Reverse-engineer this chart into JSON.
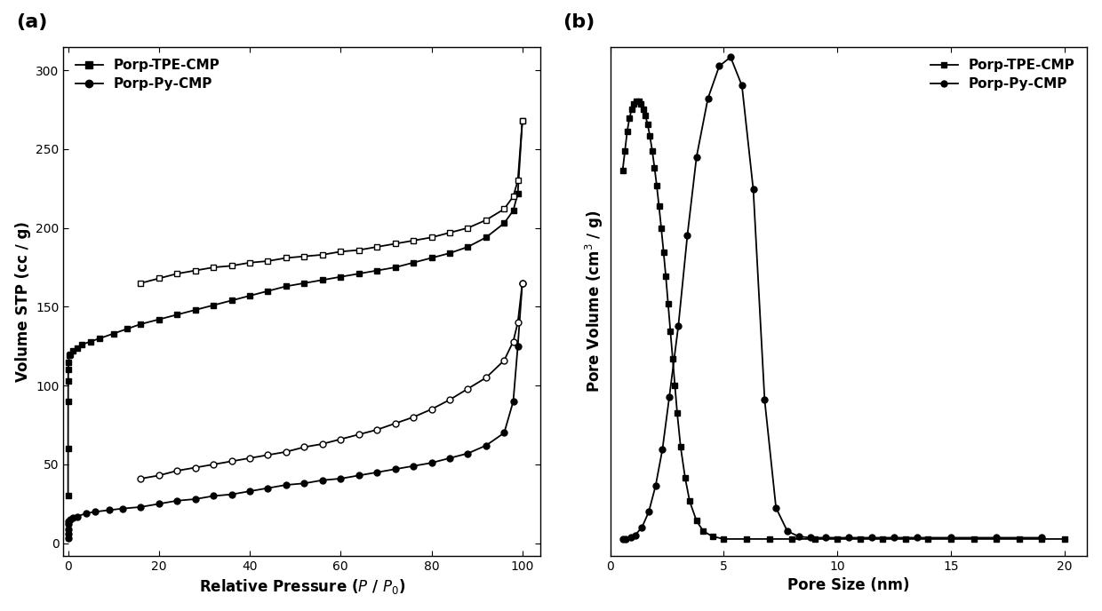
{
  "panel_a": {
    "title": "(a)",
    "xlabel": "Relative Pressure ($\\mathit{P}$ / $\\mathit{P}_0$)",
    "ylabel": "Volume STP (cc / g)",
    "xlim": [
      -1,
      104
    ],
    "ylim": [
      -8,
      315
    ],
    "xticks": [
      0,
      20,
      40,
      60,
      80,
      100
    ],
    "yticks": [
      0,
      50,
      100,
      150,
      200,
      250,
      300
    ],
    "tpe_ads_x": [
      0.005,
      0.01,
      0.02,
      0.03,
      0.05,
      0.1,
      0.3,
      0.5,
      1.0,
      2.0,
      3.0,
      5.0,
      7.0,
      10.0,
      13.0,
      16.0,
      20.0,
      24.0,
      28.0,
      32.0,
      36.0,
      40.0,
      44.0,
      48.0,
      52.0,
      56.0,
      60.0,
      64.0,
      68.0,
      72.0,
      76.0,
      80.0,
      84.0,
      88.0,
      92.0,
      96.0,
      98.0,
      99.0,
      100.0
    ],
    "tpe_ads_y": [
      30,
      60,
      90,
      103,
      110,
      115,
      119,
      120,
      122,
      124,
      126,
      128,
      130,
      133,
      136,
      139,
      142,
      145,
      148,
      151,
      154,
      157,
      160,
      163,
      165,
      167,
      169,
      171,
      173,
      175,
      178,
      181,
      184,
      188,
      194,
      203,
      211,
      222,
      268
    ],
    "tpe_des_x": [
      100.0,
      99.0,
      98.0,
      96.0,
      92.0,
      88.0,
      84.0,
      80.0,
      76.0,
      72.0,
      68.0,
      64.0,
      60.0,
      56.0,
      52.0,
      48.0,
      44.0,
      40.0,
      36.0,
      32.0,
      28.0,
      24.0,
      20.0,
      16.0
    ],
    "tpe_des_y": [
      268,
      230,
      220,
      212,
      205,
      200,
      197,
      194,
      192,
      190,
      188,
      186,
      185,
      183,
      182,
      181,
      179,
      178,
      176,
      175,
      173,
      171,
      168,
      165
    ],
    "py_ads_x": [
      0.005,
      0.01,
      0.02,
      0.05,
      0.1,
      0.5,
      1.0,
      2.0,
      4.0,
      6.0,
      9.0,
      12.0,
      16.0,
      20.0,
      24.0,
      28.0,
      32.0,
      36.0,
      40.0,
      44.0,
      48.0,
      52.0,
      56.0,
      60.0,
      64.0,
      68.0,
      72.0,
      76.0,
      80.0,
      84.0,
      88.0,
      92.0,
      96.0,
      98.0,
      99.0,
      100.0
    ],
    "py_ads_y": [
      3,
      6,
      9,
      12,
      14,
      15,
      16,
      17,
      19,
      20,
      21,
      22,
      23,
      25,
      27,
      28,
      30,
      31,
      33,
      35,
      37,
      38,
      40,
      41,
      43,
      45,
      47,
      49,
      51,
      54,
      57,
      62,
      70,
      90,
      125,
      165
    ],
    "py_des_x": [
      100.0,
      99.0,
      98.0,
      96.0,
      92.0,
      88.0,
      84.0,
      80.0,
      76.0,
      72.0,
      68.0,
      64.0,
      60.0,
      56.0,
      52.0,
      48.0,
      44.0,
      40.0,
      36.0,
      32.0,
      28.0,
      24.0,
      20.0,
      16.0
    ],
    "py_des_y": [
      165,
      140,
      128,
      116,
      105,
      98,
      91,
      85,
      80,
      76,
      72,
      69,
      66,
      63,
      61,
      58,
      56,
      54,
      52,
      50,
      48,
      46,
      43,
      41
    ]
  },
  "panel_b": {
    "title": "(b)",
    "xlabel": "Pore Size (nm)",
    "ylabel": "Pore Volume (cm$^3$ / g)",
    "xlim": [
      0,
      21
    ],
    "ylim": [
      -0.012,
      0.38
    ],
    "xticks": [
      0,
      5,
      10,
      15,
      20
    ],
    "tpe_x": [
      0.55,
      0.65,
      0.75,
      0.85,
      0.95,
      1.05,
      1.15,
      1.25,
      1.35,
      1.45,
      1.55,
      1.65,
      1.75,
      1.85,
      1.95,
      2.05,
      2.15,
      2.25,
      2.35,
      2.45,
      2.55,
      2.65,
      2.75,
      2.85,
      2.95,
      3.1,
      3.3,
      3.5,
      3.8,
      4.1,
      4.5,
      5.0,
      6.0,
      7.0,
      8.0,
      9.0,
      10.0,
      11.0,
      12.0,
      13.0,
      14.0,
      15.0,
      16.0,
      17.0,
      18.0,
      19.0,
      20.0
    ],
    "tpe_y": [
      0.285,
      0.3,
      0.315,
      0.325,
      0.332,
      0.336,
      0.338,
      0.338,
      0.336,
      0.332,
      0.327,
      0.32,
      0.311,
      0.3,
      0.287,
      0.273,
      0.257,
      0.24,
      0.222,
      0.203,
      0.182,
      0.161,
      0.14,
      0.119,
      0.098,
      0.072,
      0.048,
      0.03,
      0.015,
      0.007,
      0.003,
      0.001,
      0.001,
      0.001,
      0.001,
      0.001,
      0.001,
      0.001,
      0.001,
      0.001,
      0.001,
      0.001,
      0.001,
      0.001,
      0.001,
      0.001,
      0.001
    ],
    "py_x": [
      0.55,
      0.7,
      0.9,
      1.1,
      1.4,
      1.7,
      2.0,
      2.3,
      2.6,
      3.0,
      3.4,
      3.8,
      4.3,
      4.8,
      5.3,
      5.8,
      6.3,
      6.8,
      7.3,
      7.8,
      8.3,
      8.8,
      9.5,
      10.5,
      11.5,
      12.5,
      13.5,
      15.0,
      17.0,
      19.0
    ],
    "py_y": [
      0.001,
      0.001,
      0.002,
      0.004,
      0.01,
      0.022,
      0.042,
      0.07,
      0.11,
      0.165,
      0.235,
      0.295,
      0.34,
      0.365,
      0.372,
      0.35,
      0.27,
      0.108,
      0.025,
      0.007,
      0.003,
      0.002,
      0.002,
      0.002,
      0.002,
      0.002,
      0.002,
      0.002,
      0.002,
      0.002
    ]
  },
  "legend_tpe": "Porp-TPE-CMP",
  "legend_py": "Porp-Py-CMP",
  "bg_color": "#ffffff",
  "line_color": "#000000",
  "marker_size": 5,
  "line_width": 1.3,
  "font_size": 11,
  "label_font_size": 12,
  "tick_font_size": 10,
  "panel_label_fontsize": 16
}
